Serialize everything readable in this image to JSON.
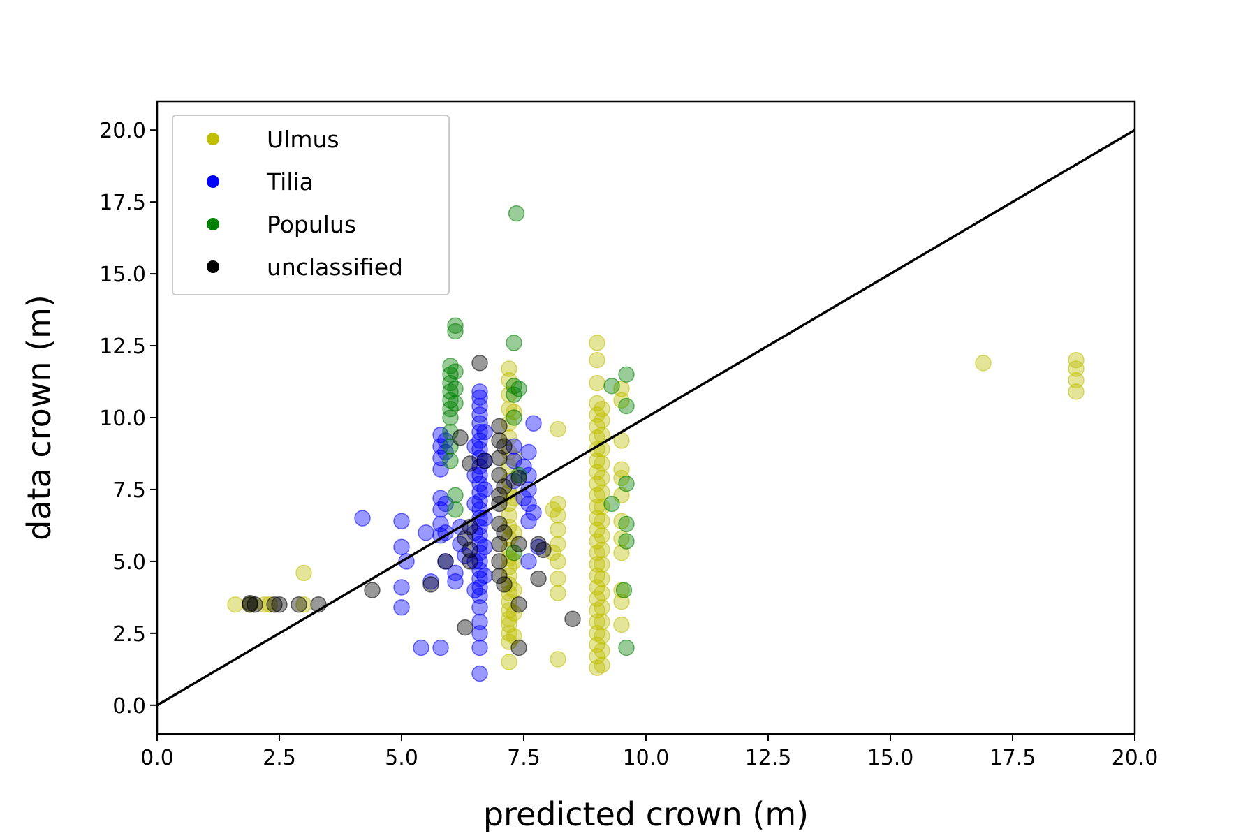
{
  "chart_data": {
    "type": "scatter",
    "title": "",
    "xlabel": "predicted crown (m)",
    "ylabel": "data crown (m)",
    "xlim": [
      0,
      20
    ],
    "ylim": [
      -1,
      21
    ],
    "xticks": [
      "0.0",
      "2.5",
      "5.0",
      "7.5",
      "10.0",
      "12.5",
      "15.0",
      "17.5",
      "20.0"
    ],
    "yticks": [
      "0.0",
      "2.5",
      "5.0",
      "7.5",
      "10.0",
      "12.5",
      "15.0",
      "17.5",
      "20.0"
    ],
    "grid": false,
    "legend_position": "top-left",
    "reference_line": {
      "x": [
        0,
        20
      ],
      "y": [
        0,
        20
      ],
      "color": "#000000"
    },
    "series": [
      {
        "name": "Ulmus",
        "color": "#bfbf00",
        "points": [
          [
            1.6,
            3.5
          ],
          [
            1.9,
            3.5
          ],
          [
            2.2,
            3.5
          ],
          [
            2.3,
            3.5
          ],
          [
            3.0,
            3.5
          ],
          [
            3.0,
            4.6
          ],
          [
            7.2,
            1.5
          ],
          [
            7.2,
            2.2
          ],
          [
            7.2,
            2.5
          ],
          [
            7.2,
            2.8
          ],
          [
            7.2,
            3.0
          ],
          [
            7.2,
            3.3
          ],
          [
            7.2,
            3.6
          ],
          [
            7.2,
            3.9
          ],
          [
            7.2,
            4.2
          ],
          [
            7.2,
            4.5
          ],
          [
            7.2,
            4.8
          ],
          [
            7.2,
            5.1
          ],
          [
            7.2,
            5.4
          ],
          [
            7.2,
            5.8
          ],
          [
            7.2,
            6.2
          ],
          [
            7.2,
            6.6
          ],
          [
            7.2,
            7.0
          ],
          [
            7.2,
            7.4
          ],
          [
            7.2,
            7.8
          ],
          [
            7.2,
            8.3
          ],
          [
            7.2,
            8.8
          ],
          [
            7.2,
            9.3
          ],
          [
            7.2,
            9.8
          ],
          [
            7.2,
            10.3
          ],
          [
            7.2,
            10.8
          ],
          [
            7.2,
            11.3
          ],
          [
            7.2,
            11.7
          ],
          [
            7.3,
            2.4
          ],
          [
            7.3,
            3.2
          ],
          [
            7.3,
            4.0
          ],
          [
            7.3,
            5.0
          ],
          [
            7.3,
            6.0
          ],
          [
            7.3,
            7.2
          ],
          [
            7.3,
            8.6
          ],
          [
            7.3,
            10.2
          ],
          [
            8.2,
            1.6
          ],
          [
            8.2,
            3.9
          ],
          [
            8.2,
            4.4
          ],
          [
            8.2,
            5.0
          ],
          [
            8.2,
            5.6
          ],
          [
            8.2,
            6.1
          ],
          [
            8.2,
            6.6
          ],
          [
            8.2,
            7.0
          ],
          [
            8.2,
            9.6
          ],
          [
            8.1,
            5.3
          ],
          [
            8.1,
            6.8
          ],
          [
            9.0,
            1.3
          ],
          [
            9.0,
            1.7
          ],
          [
            9.0,
            2.1
          ],
          [
            9.0,
            2.5
          ],
          [
            9.0,
            2.9
          ],
          [
            9.0,
            3.3
          ],
          [
            9.0,
            3.7
          ],
          [
            9.0,
            4.1
          ],
          [
            9.0,
            4.5
          ],
          [
            9.0,
            4.9
          ],
          [
            9.0,
            5.3
          ],
          [
            9.0,
            5.7
          ],
          [
            9.0,
            6.1
          ],
          [
            9.0,
            6.5
          ],
          [
            9.0,
            6.9
          ],
          [
            9.0,
            7.3
          ],
          [
            9.0,
            7.7
          ],
          [
            9.0,
            8.1
          ],
          [
            9.0,
            8.5
          ],
          [
            9.0,
            8.9
          ],
          [
            9.0,
            9.3
          ],
          [
            9.0,
            9.7
          ],
          [
            9.0,
            10.1
          ],
          [
            9.0,
            10.5
          ],
          [
            9.0,
            11.2
          ],
          [
            9.0,
            12.0
          ],
          [
            9.0,
            12.6
          ],
          [
            9.1,
            1.4
          ],
          [
            9.1,
            1.9
          ],
          [
            9.1,
            2.4
          ],
          [
            9.1,
            2.9
          ],
          [
            9.1,
            3.4
          ],
          [
            9.1,
            3.9
          ],
          [
            9.1,
            4.4
          ],
          [
            9.1,
            4.9
          ],
          [
            9.1,
            5.4
          ],
          [
            9.1,
            5.9
          ],
          [
            9.1,
            6.4
          ],
          [
            9.1,
            6.9
          ],
          [
            9.1,
            7.4
          ],
          [
            9.1,
            7.9
          ],
          [
            9.1,
            8.4
          ],
          [
            9.1,
            8.9
          ],
          [
            9.1,
            9.4
          ],
          [
            9.1,
            9.9
          ],
          [
            9.1,
            10.3
          ],
          [
            9.5,
            2.8
          ],
          [
            9.5,
            3.6
          ],
          [
            9.5,
            4.0
          ],
          [
            9.5,
            5.3
          ],
          [
            9.5,
            5.8
          ],
          [
            9.5,
            6.4
          ],
          [
            9.5,
            7.3
          ],
          [
            9.5,
            7.9
          ],
          [
            9.5,
            8.2
          ],
          [
            9.5,
            9.2
          ],
          [
            9.5,
            10.6
          ],
          [
            9.5,
            11.0
          ],
          [
            16.9,
            11.9
          ],
          [
            18.8,
            10.9
          ],
          [
            18.8,
            11.3
          ],
          [
            18.8,
            11.7
          ],
          [
            18.8,
            12.0
          ]
        ]
      },
      {
        "name": "Tilia",
        "color": "#0000ff",
        "points": [
          [
            4.2,
            6.5
          ],
          [
            5.0,
            6.4
          ],
          [
            5.0,
            5.5
          ],
          [
            5.0,
            4.1
          ],
          [
            5.0,
            3.4
          ],
          [
            5.4,
            2.0
          ],
          [
            5.8,
            2.0
          ],
          [
            5.1,
            5.0
          ],
          [
            5.5,
            6.0
          ],
          [
            5.6,
            4.3
          ],
          [
            5.8,
            5.9
          ],
          [
            5.8,
            6.3
          ],
          [
            5.8,
            6.8
          ],
          [
            5.8,
            7.2
          ],
          [
            5.8,
            8.2
          ],
          [
            5.8,
            8.6
          ],
          [
            5.8,
            9.0
          ],
          [
            5.8,
            9.4
          ],
          [
            5.9,
            6.0
          ],
          [
            5.9,
            7.0
          ],
          [
            5.9,
            8.8
          ],
          [
            5.9,
            9.2
          ],
          [
            5.9,
            5.0
          ],
          [
            6.1,
            4.3
          ],
          [
            6.1,
            4.6
          ],
          [
            6.2,
            5.6
          ],
          [
            6.2,
            6.2
          ],
          [
            6.3,
            5.2
          ],
          [
            6.6,
            1.1
          ],
          [
            6.6,
            2.0
          ],
          [
            6.6,
            2.5
          ],
          [
            6.6,
            2.9
          ],
          [
            6.6,
            3.4
          ],
          [
            6.6,
            3.8
          ],
          [
            6.6,
            4.1
          ],
          [
            6.6,
            4.4
          ],
          [
            6.6,
            4.7
          ],
          [
            6.6,
            5.0
          ],
          [
            6.6,
            5.3
          ],
          [
            6.6,
            5.6
          ],
          [
            6.6,
            5.9
          ],
          [
            6.6,
            6.2
          ],
          [
            6.6,
            6.5
          ],
          [
            6.6,
            6.8
          ],
          [
            6.6,
            7.1
          ],
          [
            6.6,
            7.4
          ],
          [
            6.6,
            7.7
          ],
          [
            6.6,
            8.0
          ],
          [
            6.6,
            8.3
          ],
          [
            6.6,
            8.6
          ],
          [
            6.6,
            8.9
          ],
          [
            6.6,
            9.2
          ],
          [
            6.6,
            9.5
          ],
          [
            6.6,
            9.8
          ],
          [
            6.6,
            10.1
          ],
          [
            6.6,
            10.4
          ],
          [
            6.6,
            10.7
          ],
          [
            6.6,
            10.9
          ],
          [
            6.5,
            4.0
          ],
          [
            6.5,
            5.0
          ],
          [
            6.5,
            6.0
          ],
          [
            6.5,
            7.0
          ],
          [
            6.5,
            8.0
          ],
          [
            6.5,
            9.0
          ],
          [
            6.7,
            4.5
          ],
          [
            6.7,
            5.5
          ],
          [
            6.7,
            6.5
          ],
          [
            6.7,
            7.5
          ],
          [
            6.7,
            8.5
          ],
          [
            6.7,
            9.5
          ],
          [
            7.3,
            8.5
          ],
          [
            7.3,
            9.0
          ],
          [
            7.3,
            7.8
          ],
          [
            7.5,
            8.3
          ],
          [
            7.6,
            5.0
          ],
          [
            7.6,
            6.4
          ],
          [
            7.6,
            7.0
          ],
          [
            7.6,
            7.5
          ],
          [
            7.6,
            8.0
          ],
          [
            7.6,
            8.8
          ],
          [
            7.7,
            9.8
          ],
          [
            7.7,
            6.7
          ],
          [
            7.8,
            5.5
          ],
          [
            7.5,
            7.2
          ]
        ]
      },
      {
        "name": "Populus",
        "color": "#008000",
        "points": [
          [
            6.0,
            9.0
          ],
          [
            6.0,
            9.5
          ],
          [
            6.0,
            10.0
          ],
          [
            6.0,
            10.3
          ],
          [
            6.0,
            10.6
          ],
          [
            6.0,
            10.9
          ],
          [
            6.0,
            11.2
          ],
          [
            6.0,
            11.5
          ],
          [
            6.0,
            11.8
          ],
          [
            6.1,
            10.5
          ],
          [
            6.1,
            11.0
          ],
          [
            6.1,
            11.6
          ],
          [
            6.1,
            13.0
          ],
          [
            6.1,
            13.2
          ],
          [
            6.1,
            7.3
          ],
          [
            6.1,
            6.8
          ],
          [
            6.0,
            8.5
          ],
          [
            7.3,
            10.8
          ],
          [
            7.3,
            11.1
          ],
          [
            7.4,
            11.0
          ],
          [
            7.3,
            10.0
          ],
          [
            7.3,
            12.6
          ],
          [
            7.35,
            17.1
          ],
          [
            7.4,
            8.0
          ],
          [
            7.3,
            5.3
          ],
          [
            9.3,
            11.1
          ],
          [
            9.3,
            7.0
          ],
          [
            9.6,
            11.5
          ],
          [
            9.6,
            10.4
          ],
          [
            9.6,
            7.7
          ],
          [
            9.6,
            6.3
          ],
          [
            9.6,
            5.7
          ],
          [
            9.6,
            2.0
          ],
          [
            9.55,
            4.0
          ]
        ]
      },
      {
        "name": "unclassified",
        "color": "#000000",
        "points": [
          [
            1.9,
            3.5
          ],
          [
            1.9,
            3.55
          ],
          [
            2.0,
            3.5
          ],
          [
            2.4,
            3.5
          ],
          [
            2.5,
            3.5
          ],
          [
            2.9,
            3.5
          ],
          [
            3.3,
            3.5
          ],
          [
            4.4,
            4.0
          ],
          [
            5.6,
            4.2
          ],
          [
            5.9,
            5.0
          ],
          [
            6.3,
            2.7
          ],
          [
            6.3,
            5.8
          ],
          [
            6.4,
            5.4
          ],
          [
            6.4,
            6.2
          ],
          [
            6.4,
            8.4
          ],
          [
            6.2,
            9.3
          ],
          [
            6.6,
            11.9
          ],
          [
            6.7,
            8.5
          ],
          [
            6.4,
            5.0
          ],
          [
            7.0,
            4.5
          ],
          [
            7.0,
            5.0
          ],
          [
            7.0,
            5.6
          ],
          [
            7.0,
            6.3
          ],
          [
            7.0,
            7.0
          ],
          [
            7.0,
            7.3
          ],
          [
            7.0,
            8.0
          ],
          [
            7.0,
            8.6
          ],
          [
            7.0,
            9.2
          ],
          [
            7.0,
            9.7
          ],
          [
            7.1,
            4.2
          ],
          [
            7.1,
            6.0
          ],
          [
            7.1,
            7.6
          ],
          [
            7.1,
            9.0
          ],
          [
            7.4,
            3.5
          ],
          [
            7.4,
            5.6
          ],
          [
            7.4,
            7.9
          ],
          [
            7.4,
            2.0
          ],
          [
            7.8,
            4.4
          ],
          [
            7.8,
            5.6
          ],
          [
            7.9,
            5.4
          ],
          [
            8.5,
            3.0
          ]
        ]
      }
    ]
  }
}
